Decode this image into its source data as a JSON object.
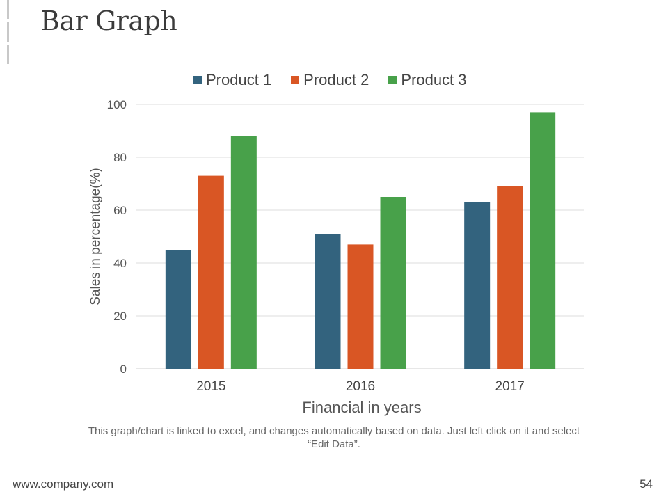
{
  "slide": {
    "title": "Bar Graph",
    "note": "This graph/chart is linked to excel, and changes automatically based on data. Just left click on it and select “Edit Data”.",
    "footer_url": "www.company.com",
    "page_number": "54"
  },
  "chart_data": {
    "type": "bar",
    "categories": [
      "2015",
      "2016",
      "2017"
    ],
    "series": [
      {
        "name": "Product 1",
        "color": "#33637e",
        "values": [
          45,
          51,
          63
        ]
      },
      {
        "name": "Product 2",
        "color": "#d95624",
        "values": [
          73,
          47,
          69
        ]
      },
      {
        "name": "Product 3",
        "color": "#48a14a",
        "values": [
          88,
          65,
          97
        ]
      }
    ],
    "title": "",
    "xlabel": "Financial in years",
    "ylabel": "Sales in percentage(%)",
    "ylim": [
      0,
      100
    ],
    "yticks": [
      "0",
      "20",
      "40",
      "60",
      "80",
      "100"
    ],
    "grid": true,
    "legend_position": "top"
  }
}
